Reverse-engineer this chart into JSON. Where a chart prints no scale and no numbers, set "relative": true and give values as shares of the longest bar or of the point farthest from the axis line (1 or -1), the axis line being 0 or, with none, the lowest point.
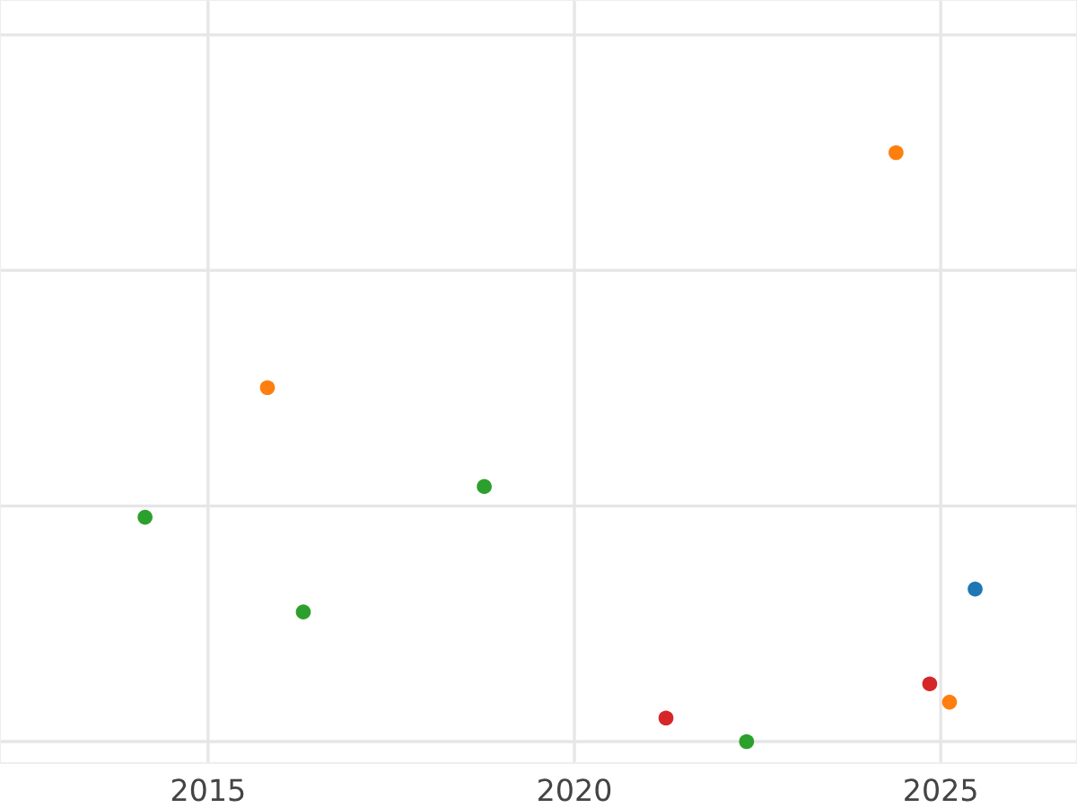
{
  "chart_data": {
    "type": "scatter",
    "relative": true,
    "grid": true,
    "marker": "circle",
    "xlim": [
      2012.16,
      2026.86
    ],
    "xticks": [
      2015,
      2020,
      2025
    ],
    "tick_labels": "x",
    "series": [
      {
        "color": "#1f77b4",
        "x": [
          2025.47
        ],
        "values": [
          0.259
        ]
      },
      {
        "color": "#ff7f0e",
        "x": [
          2024.39,
          2015.81,
          2025.12
        ],
        "values": [
          1,
          0.601,
          0.067
        ]
      },
      {
        "color": "#2ca02c",
        "x": [
          2014.14,
          2018.77,
          2016.3,
          2022.35
        ],
        "values": [
          0.381,
          0.433,
          0.22,
          0
        ]
      },
      {
        "color": "#d62728",
        "x": [
          2021.25,
          2024.85
        ],
        "values": [
          0.04,
          0.098
        ]
      }
    ]
  }
}
